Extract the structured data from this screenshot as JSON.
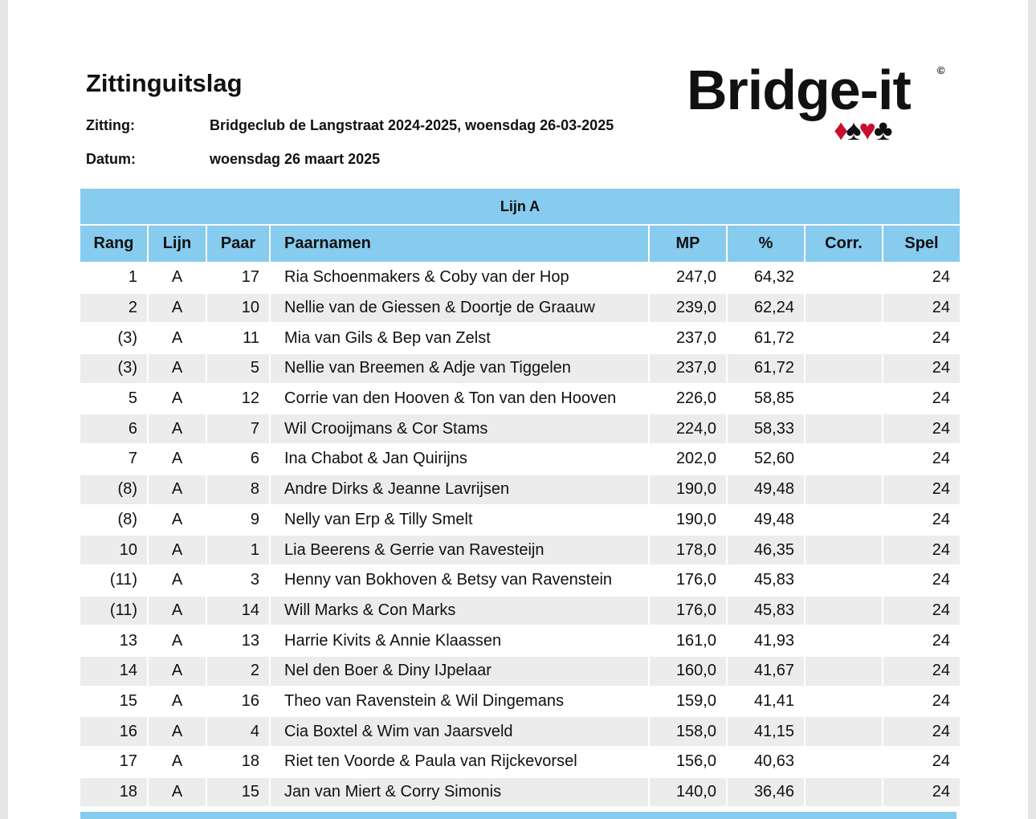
{
  "header": {
    "title": "Zittinguitslag",
    "fields": [
      {
        "label": "Zitting:",
        "value": "Bridgeclub de Langstraat 2024-2025, woensdag 26-03-2025"
      },
      {
        "label": "Datum:",
        "value": "woensdag 26 maart 2025"
      }
    ]
  },
  "logo": {
    "text": "Bridge-it",
    "mark": "©",
    "suits": [
      "♦",
      "♠",
      "♥",
      "♣"
    ]
  },
  "table": {
    "caption": "Lijn A",
    "columns": [
      "Rang",
      "Lijn",
      "Paar",
      "Paarnamen",
      "MP",
      "%",
      "Corr.",
      "Spel"
    ],
    "rows": [
      [
        "1",
        "A",
        "17",
        "Ria Schoenmakers & Coby van der Hop",
        "247,0",
        "64,32",
        "",
        "24"
      ],
      [
        "2",
        "A",
        "10",
        "Nellie van de Giessen & Doortje de Graauw",
        "239,0",
        "62,24",
        "",
        "24"
      ],
      [
        "(3)",
        "A",
        "11",
        "Mia van Gils & Bep van Zelst",
        "237,0",
        "61,72",
        "",
        "24"
      ],
      [
        "(3)",
        "A",
        "5",
        "Nellie van Breemen & Adje van Tiggelen",
        "237,0",
        "61,72",
        "",
        "24"
      ],
      [
        "5",
        "A",
        "12",
        "Corrie van den Hooven & Ton van den Hooven",
        "226,0",
        "58,85",
        "",
        "24"
      ],
      [
        "6",
        "A",
        "7",
        "Wil Crooijmans & Cor Stams",
        "224,0",
        "58,33",
        "",
        "24"
      ],
      [
        "7",
        "A",
        "6",
        "Ina Chabot & Jan Quirijns",
        "202,0",
        "52,60",
        "",
        "24"
      ],
      [
        "(8)",
        "A",
        "8",
        "Andre Dirks & Jeanne Lavrijsen",
        "190,0",
        "49,48",
        "",
        "24"
      ],
      [
        "(8)",
        "A",
        "9",
        "Nelly van Erp & Tilly Smelt",
        "190,0",
        "49,48",
        "",
        "24"
      ],
      [
        "10",
        "A",
        "1",
        "Lia Beerens & Gerrie van Ravesteijn",
        "178,0",
        "46,35",
        "",
        "24"
      ],
      [
        "(11)",
        "A",
        "3",
        "Henny van Bokhoven & Betsy van Ravenstein",
        "176,0",
        "45,83",
        "",
        "24"
      ],
      [
        "(11)",
        "A",
        "14",
        "Will Marks & Con Marks",
        "176,0",
        "45,83",
        "",
        "24"
      ],
      [
        "13",
        "A",
        "13",
        "Harrie Kivits & Annie Klaassen",
        "161,0",
        "41,93",
        "",
        "24"
      ],
      [
        "14",
        "A",
        "2",
        "Nel den Boer & Diny IJpelaar",
        "160,0",
        "41,67",
        "",
        "24"
      ],
      [
        "15",
        "A",
        "16",
        "Theo van Ravenstein & Wil Dingemans",
        "159,0",
        "41,41",
        "",
        "24"
      ],
      [
        "16",
        "A",
        "4",
        "Cia Boxtel & Wim van Jaarsveld",
        "158,0",
        "41,15",
        "",
        "24"
      ],
      [
        "17",
        "A",
        "18",
        "Riet ten Voorde & Paula van Rijckevorsel",
        "156,0",
        "40,63",
        "",
        "24"
      ],
      [
        "18",
        "A",
        "15",
        "Jan van Miert & Corry Simonis",
        "140,0",
        "36,46",
        "",
        "24"
      ]
    ]
  }
}
